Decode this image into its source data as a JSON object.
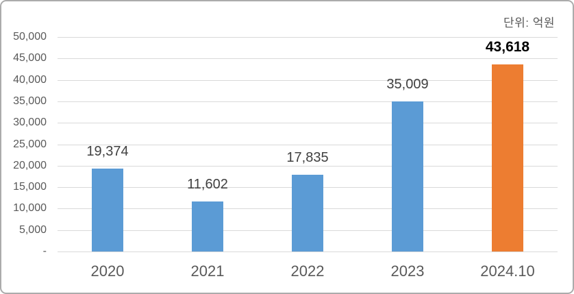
{
  "chart_data": {
    "type": "bar",
    "title": "",
    "unit_label": "단위: 억원",
    "categories": [
      "2020",
      "2021",
      "2022",
      "2023",
      "2024.10"
    ],
    "values": [
      19374,
      11602,
      17835,
      35009,
      43618
    ],
    "value_labels": [
      "19,374",
      "11,602",
      "17,835",
      "35,009",
      "43,618"
    ],
    "highlight_index": 4,
    "ylim": [
      0,
      50000
    ],
    "ytick_interval": 5000,
    "ytick_labels": [
      "50,000",
      "45,000",
      "40,000",
      "35,000",
      "30,000",
      "25,000",
      "20,000",
      "15,000",
      "10,000",
      "5,000",
      "-"
    ],
    "grid": true,
    "legend": "none",
    "colors": {
      "bar_default": "#5B9BD5",
      "bar_highlight": "#ED7D31",
      "gridline": "#D9D9D9",
      "axis_text": "#595959",
      "data_label": "#404040",
      "highlight_label": "#000000",
      "frame_border": "#ABABAB"
    }
  }
}
